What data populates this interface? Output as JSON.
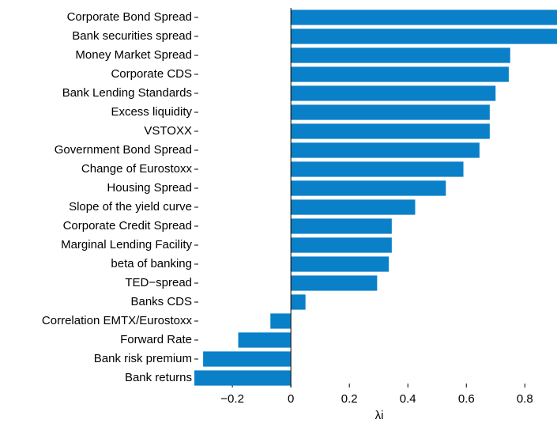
{
  "chart_data": {
    "type": "barh",
    "color": "#0a80c8",
    "xlabel": "λi",
    "categories": [
      "Corporate Bond Spread",
      "Bank securities spread",
      "Money Market Spread",
      "Corporate CDS",
      "Bank Lending Standards",
      "Excess liquidity",
      "VSTOXX",
      "Government Bond Spread",
      "Change of Eurostoxx",
      "Housing Spread",
      "Slope of the yield curve",
      "Corporate Credit Spread",
      "Marginal Lending Facility",
      "beta of banking",
      "TED−spread",
      "Banks CDS",
      "Correlation EMTX/Eurostoxx",
      "Forward Rate",
      "Bank risk premium",
      "Bank returns"
    ],
    "values": [
      0.91,
      0.91,
      0.75,
      0.745,
      0.7,
      0.68,
      0.68,
      0.645,
      0.59,
      0.53,
      0.425,
      0.345,
      0.345,
      0.335,
      0.295,
      0.05,
      -0.07,
      -0.18,
      -0.3,
      -0.33
    ],
    "xlim": [
      -0.33,
      0.91
    ],
    "xticks": [
      {
        "value": -0.2,
        "label": "−0.2"
      },
      0,
      0.2,
      0.4,
      0.6,
      0.8
    ]
  }
}
